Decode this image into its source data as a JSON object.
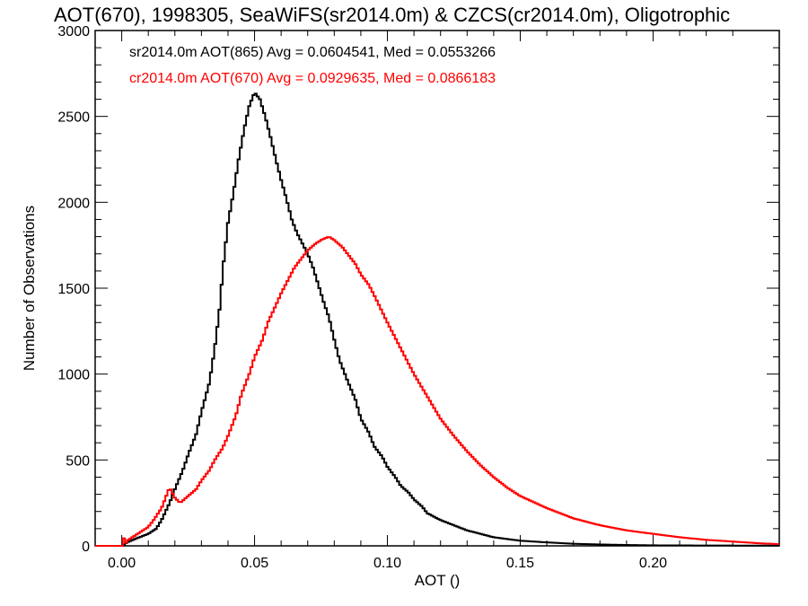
{
  "chart_data": {
    "type": "line",
    "title": "AOT(670), 1998305, SeaWiFS(sr2014.0m) & CZCS(cr2014.0m), Oligotrophic",
    "xlabel": "AOT ()",
    "ylabel": "Number of Observations",
    "xlim": [
      -0.01,
      0.2475
    ],
    "ylim": [
      0,
      3000
    ],
    "x_ticks": [
      0.0,
      0.05,
      0.1,
      0.15,
      0.2
    ],
    "x_tick_labels": [
      "0.00",
      "0.05",
      "0.10",
      "0.15",
      "0.20"
    ],
    "y_ticks": [
      0,
      500,
      1000,
      1500,
      2000,
      2500,
      3000
    ],
    "y_tick_labels": [
      "0",
      "500",
      "1000",
      "1500",
      "2000",
      "2500",
      "3000"
    ],
    "step": true,
    "legend_position": "top-left",
    "series": [
      {
        "name": "sr2014.0m AOT(865) Avg = 0.0604541, Med = 0.0553266",
        "color": "#000000",
        "points": [
          [
            -0.01,
            0
          ],
          [
            0.0,
            0
          ],
          [
            0.002,
            20
          ],
          [
            0.005,
            40
          ],
          [
            0.01,
            70
          ],
          [
            0.013,
            100
          ],
          [
            0.015,
            150
          ],
          [
            0.018,
            250
          ],
          [
            0.02,
            330
          ],
          [
            0.023,
            440
          ],
          [
            0.025,
            530
          ],
          [
            0.028,
            650
          ],
          [
            0.03,
            780
          ],
          [
            0.033,
            950
          ],
          [
            0.035,
            1150
          ],
          [
            0.037,
            1400
          ],
          [
            0.038,
            1600
          ],
          [
            0.04,
            1880
          ],
          [
            0.042,
            2050
          ],
          [
            0.044,
            2250
          ],
          [
            0.046,
            2420
          ],
          [
            0.048,
            2560
          ],
          [
            0.05,
            2640
          ],
          [
            0.052,
            2600
          ],
          [
            0.054,
            2500
          ],
          [
            0.056,
            2380
          ],
          [
            0.058,
            2250
          ],
          [
            0.06,
            2130
          ],
          [
            0.062,
            2020
          ],
          [
            0.064,
            1900
          ],
          [
            0.066,
            1820
          ],
          [
            0.068,
            1760
          ],
          [
            0.07,
            1700
          ],
          [
            0.072,
            1620
          ],
          [
            0.074,
            1520
          ],
          [
            0.076,
            1420
          ],
          [
            0.078,
            1330
          ],
          [
            0.08,
            1200
          ],
          [
            0.082,
            1080
          ],
          [
            0.085,
            960
          ],
          [
            0.088,
            850
          ],
          [
            0.09,
            740
          ],
          [
            0.093,
            660
          ],
          [
            0.095,
            580
          ],
          [
            0.098,
            520
          ],
          [
            0.1,
            460
          ],
          [
            0.103,
            400
          ],
          [
            0.105,
            350
          ],
          [
            0.108,
            310
          ],
          [
            0.11,
            270
          ],
          [
            0.113,
            230
          ],
          [
            0.115,
            190
          ],
          [
            0.12,
            150
          ],
          [
            0.125,
            120
          ],
          [
            0.13,
            90
          ],
          [
            0.135,
            70
          ],
          [
            0.14,
            50
          ],
          [
            0.145,
            40
          ],
          [
            0.15,
            30
          ],
          [
            0.16,
            20
          ],
          [
            0.17,
            12
          ],
          [
            0.18,
            8
          ],
          [
            0.19,
            5
          ],
          [
            0.2,
            3
          ],
          [
            0.22,
            2
          ],
          [
            0.2475,
            1
          ]
        ]
      },
      {
        "name": "cr2014.0m AOT(670) Avg = 0.0929635, Med = 0.0866183",
        "color": "#ff0000",
        "points": [
          [
            -0.01,
            0
          ],
          [
            0.0,
            0
          ],
          [
            0.0005,
            110
          ],
          [
            0.001,
            0
          ],
          [
            0.002,
            30
          ],
          [
            0.005,
            60
          ],
          [
            0.008,
            90
          ],
          [
            0.01,
            110
          ],
          [
            0.012,
            150
          ],
          [
            0.015,
            220
          ],
          [
            0.017,
            300
          ],
          [
            0.018,
            340
          ],
          [
            0.02,
            280
          ],
          [
            0.022,
            250
          ],
          [
            0.025,
            290
          ],
          [
            0.028,
            330
          ],
          [
            0.03,
            380
          ],
          [
            0.033,
            440
          ],
          [
            0.035,
            500
          ],
          [
            0.038,
            570
          ],
          [
            0.04,
            640
          ],
          [
            0.043,
            760
          ],
          [
            0.045,
            880
          ],
          [
            0.048,
            1000
          ],
          [
            0.05,
            1100
          ],
          [
            0.053,
            1200
          ],
          [
            0.055,
            1300
          ],
          [
            0.058,
            1400
          ],
          [
            0.06,
            1470
          ],
          [
            0.063,
            1560
          ],
          [
            0.065,
            1620
          ],
          [
            0.068,
            1680
          ],
          [
            0.07,
            1720
          ],
          [
            0.073,
            1760
          ],
          [
            0.075,
            1780
          ],
          [
            0.078,
            1800
          ],
          [
            0.08,
            1780
          ],
          [
            0.083,
            1740
          ],
          [
            0.085,
            1700
          ],
          [
            0.088,
            1640
          ],
          [
            0.09,
            1580
          ],
          [
            0.093,
            1520
          ],
          [
            0.095,
            1460
          ],
          [
            0.1,
            1300
          ],
          [
            0.105,
            1150
          ],
          [
            0.11,
            1000
          ],
          [
            0.115,
            870
          ],
          [
            0.12,
            740
          ],
          [
            0.125,
            640
          ],
          [
            0.13,
            550
          ],
          [
            0.135,
            470
          ],
          [
            0.14,
            400
          ],
          [
            0.145,
            340
          ],
          [
            0.15,
            290
          ],
          [
            0.16,
            220
          ],
          [
            0.17,
            160
          ],
          [
            0.18,
            120
          ],
          [
            0.19,
            90
          ],
          [
            0.2,
            70
          ],
          [
            0.21,
            50
          ],
          [
            0.22,
            35
          ],
          [
            0.23,
            25
          ],
          [
            0.24,
            15
          ],
          [
            0.2475,
            10
          ]
        ]
      }
    ]
  }
}
